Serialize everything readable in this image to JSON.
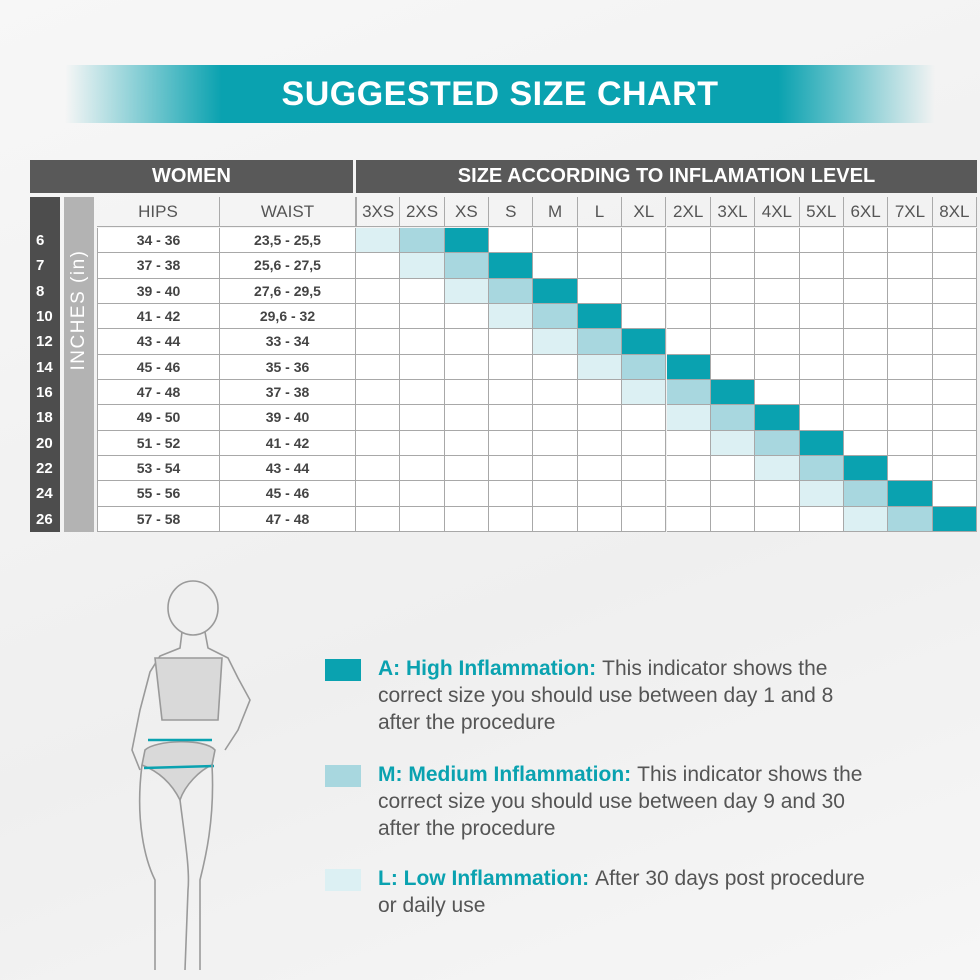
{
  "title": "SUGGESTED SIZE CHART",
  "table": {
    "group_headers": [
      "WOMEN",
      "SIZE ACCORDING TO INFLAMATION LEVEL"
    ],
    "measure_headers": [
      "HIPS",
      "WAIST"
    ],
    "unit_label": "INCHES (in)",
    "sizes": [
      "3XS",
      "2XS",
      "XS",
      "S",
      "M",
      "L",
      "XL",
      "2XL",
      "3XL",
      "4XL",
      "5XL",
      "6XL",
      "7XL",
      "8XL"
    ],
    "rows": [
      {
        "size": "6",
        "hips": "34 - 36",
        "waist": "23,5 - 25,5",
        "low": "3XS",
        "medium": "2XS",
        "high": "XS"
      },
      {
        "size": "7",
        "hips": "37 - 38",
        "waist": "25,6 - 27,5",
        "low": "2XS",
        "medium": "XS",
        "high": "S"
      },
      {
        "size": "8",
        "hips": "39 - 40",
        "waist": "27,6 - 29,5",
        "low": "XS",
        "medium": "S",
        "high": "M"
      },
      {
        "size": "10",
        "hips": "41 - 42",
        "waist": "29,6 - 32",
        "low": "S",
        "medium": "M",
        "high": "L"
      },
      {
        "size": "12",
        "hips": "43 - 44",
        "waist": "33 - 34",
        "low": "M",
        "medium": "L",
        "high": "XL"
      },
      {
        "size": "14",
        "hips": "45 - 46",
        "waist": "35 - 36",
        "low": "L",
        "medium": "XL",
        "high": "2XL"
      },
      {
        "size": "16",
        "hips": "47 - 48",
        "waist": "37 - 38",
        "low": "XL",
        "medium": "2XL",
        "high": "3XL"
      },
      {
        "size": "18",
        "hips": "49 - 50",
        "waist": "39 - 40",
        "low": "2XL",
        "medium": "3XL",
        "high": "4XL"
      },
      {
        "size": "20",
        "hips": "51 - 52",
        "waist": "41 - 42",
        "low": "3XL",
        "medium": "4XL",
        "high": "5XL"
      },
      {
        "size": "22",
        "hips": "53 - 54",
        "waist": "43 - 44",
        "low": "4XL",
        "medium": "5XL",
        "high": "6XL"
      },
      {
        "size": "24",
        "hips": "55 - 56",
        "waist": "45 - 46",
        "low": "5XL",
        "medium": "6XL",
        "high": "7XL"
      },
      {
        "size": "26",
        "hips": "57 - 58",
        "waist": "47 - 48",
        "low": "6XL",
        "medium": "7XL",
        "high": "8XL"
      }
    ]
  },
  "legend": [
    {
      "level": "high",
      "color": "#0aa2b0",
      "label": "A: High Inflammation:",
      "text": "This indicator shows the correct size you should use between day 1 and 8 after the procedure"
    },
    {
      "level": "medium",
      "color": "#a8d7df",
      "label": "M: Medium Inflammation:",
      "text": "This indicator shows the correct size you should use between day 9 and 30 after the procedure"
    },
    {
      "level": "low",
      "color": "#dcf0f3",
      "label": "L: Low Inflammation:",
      "text": "After 30 days post procedure or daily use"
    }
  ]
}
